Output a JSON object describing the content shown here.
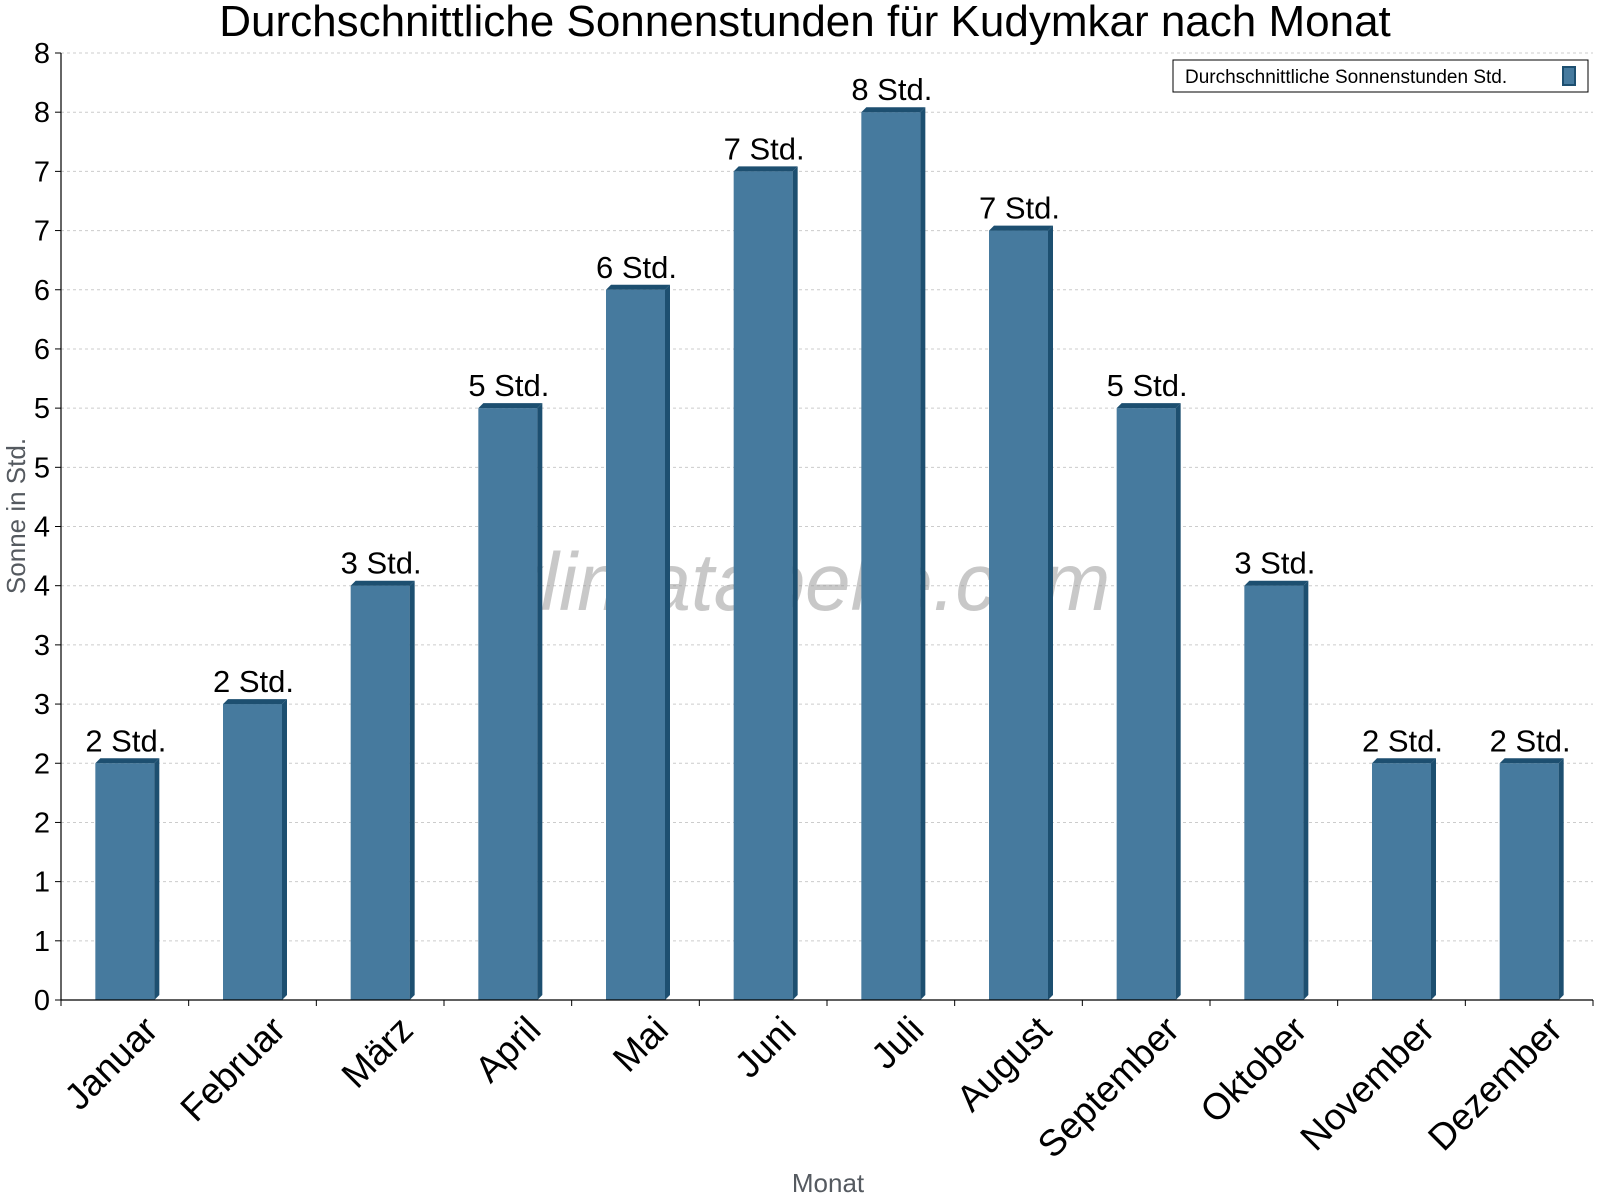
{
  "chart_data": {
    "type": "bar",
    "title": "Durchschnittliche Sonnenstunden für Kudymkar nach Monat",
    "xlabel": "Monat",
    "ylabel": "Sonne in Std.",
    "categories": [
      "Januar",
      "Februar",
      "März",
      "April",
      "Mai",
      "Juni",
      "Juli",
      "August",
      "September",
      "Oktober",
      "November",
      "Dezember"
    ],
    "series": [
      {
        "name": "Durchschnittliche Sonnenstunden Std.",
        "values": [
          2,
          2.5,
          3.5,
          5,
          6,
          7,
          7.5,
          6.5,
          5,
          3.5,
          2,
          2
        ],
        "labels": [
          "2 Std.",
          "2 Std.",
          "3 Std.",
          "5 Std.",
          "6 Std.",
          "7 Std.",
          "8 Std.",
          "7 Std.",
          "5 Std.",
          "3 Std.",
          "2 Std.",
          "2 Std."
        ]
      }
    ],
    "yticks": [
      "0",
      "1",
      "1",
      "2",
      "2",
      "3",
      "3",
      "4",
      "4",
      "5",
      "5",
      "6",
      "6",
      "7",
      "7",
      "8",
      "8"
    ],
    "ylim": [
      0,
      8
    ],
    "grid": true,
    "legend_position": "top-right",
    "colors": {
      "bar": "#467a9e",
      "bar_side": "#1d4f70",
      "grid": "#cccccc"
    }
  },
  "watermark": "klimatabelle.com"
}
